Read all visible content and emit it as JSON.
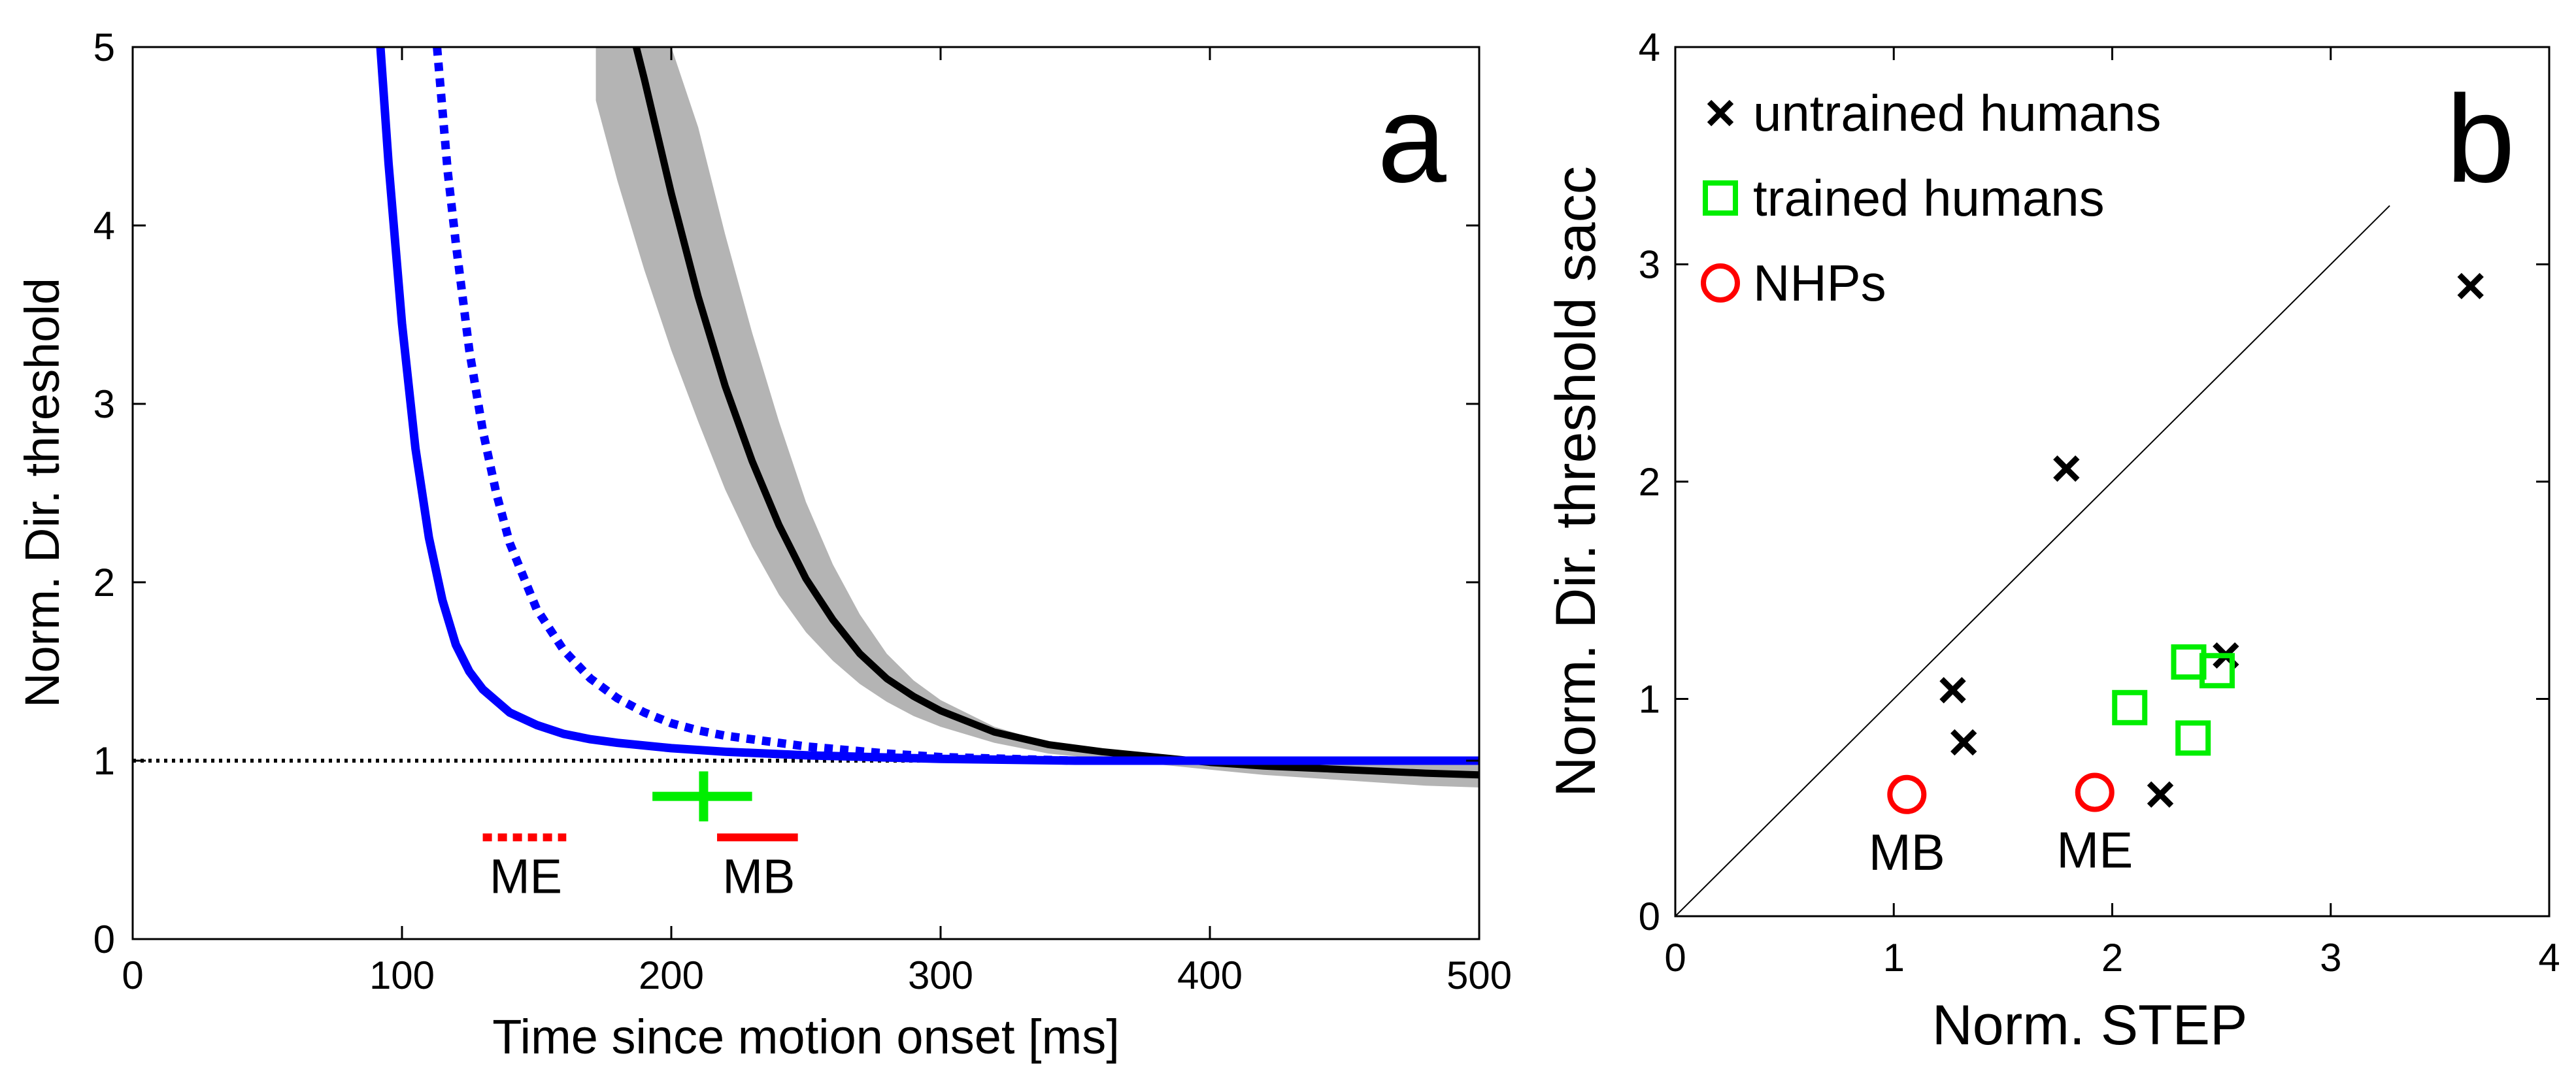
{
  "chart_data": [
    {
      "panel": "a",
      "type": "line",
      "panel_label": "a",
      "xlabel": "Time since motion onset [ms]",
      "ylabel": "Norm. Dir. threshold",
      "xlim": [
        0,
        500
      ],
      "ylim": [
        0,
        5
      ],
      "xticks": [
        "0",
        "100",
        "200",
        "300",
        "400",
        "500"
      ],
      "yticks": [
        "0",
        "1",
        "2",
        "3",
        "4",
        "5"
      ],
      "reference_line": {
        "y": 1,
        "style": "dotted",
        "color": "#000000"
      },
      "colors": {
        "solid_blue": "#0000ff",
        "dotted_blue": "#0000ff",
        "black": "#000000",
        "band": "#b4b4b4",
        "green": "#00ee00",
        "red": "#ff0000"
      },
      "series": [
        {
          "name": "solid blue",
          "style": "solid",
          "x": [
            92,
            95,
            100,
            105,
            110,
            115,
            120,
            125,
            130,
            140,
            150,
            160,
            170,
            180,
            200,
            220,
            250,
            300,
            350,
            400,
            450,
            500
          ],
          "y": [
            5.0,
            4.35,
            3.45,
            2.75,
            2.25,
            1.9,
            1.65,
            1.5,
            1.4,
            1.27,
            1.2,
            1.15,
            1.12,
            1.1,
            1.07,
            1.05,
            1.03,
            1.01,
            1.0,
            1.0,
            1.0,
            1.0
          ]
        },
        {
          "name": "dotted blue",
          "style": "dotted",
          "x": [
            113,
            117,
            120,
            125,
            130,
            135,
            140,
            150,
            160,
            170,
            180,
            190,
            200,
            210,
            220,
            250,
            280,
            300,
            350,
            400,
            450,
            500
          ],
          "y": [
            5.0,
            4.3,
            3.9,
            3.3,
            2.85,
            2.5,
            2.22,
            1.85,
            1.62,
            1.46,
            1.35,
            1.27,
            1.21,
            1.17,
            1.14,
            1.08,
            1.04,
            1.02,
            1.0,
            1.0,
            1.0,
            1.0
          ]
        },
        {
          "name": "black mean",
          "style": "solid",
          "x": [
            187,
            190,
            195,
            200,
            210,
            220,
            230,
            240,
            250,
            260,
            270,
            280,
            290,
            300,
            320,
            340,
            360,
            380,
            400,
            420,
            450,
            480,
            500
          ],
          "y": [
            5.0,
            4.82,
            4.5,
            4.18,
            3.6,
            3.1,
            2.68,
            2.32,
            2.02,
            1.79,
            1.6,
            1.46,
            1.36,
            1.28,
            1.16,
            1.09,
            1.05,
            1.02,
            0.99,
            0.97,
            0.95,
            0.93,
            0.92
          ]
        },
        {
          "name": "gray band",
          "style": "band",
          "x": [
            172,
            180,
            190,
            200,
            210,
            220,
            230,
            240,
            250,
            260,
            270,
            280,
            290,
            300,
            320,
            340,
            360,
            380,
            400,
            420,
            450,
            480,
            500
          ],
          "y_low": [
            4.7,
            4.25,
            3.75,
            3.3,
            2.9,
            2.52,
            2.2,
            1.93,
            1.72,
            1.56,
            1.43,
            1.33,
            1.25,
            1.19,
            1.1,
            1.04,
            1.01,
            0.98,
            0.95,
            0.92,
            0.89,
            0.86,
            0.85
          ],
          "y_high": [
            5.0,
            5.0,
            5.0,
            5.0,
            4.55,
            3.95,
            3.4,
            2.9,
            2.45,
            2.1,
            1.82,
            1.6,
            1.45,
            1.34,
            1.19,
            1.1,
            1.06,
            1.03,
            1.01,
            1.0,
            0.99,
            0.98,
            0.98
          ]
        }
      ],
      "markers": [
        {
          "name": "green cross",
          "x": 212,
          "y": 0.8,
          "x_err": [
            193,
            230
          ],
          "y_err": [
            0.66,
            0.94
          ]
        },
        {
          "name": "ME",
          "label": "ME",
          "style": "dotted",
          "x": [
            130,
            161
          ],
          "y": 0.57
        },
        {
          "name": "MB",
          "label": "MB",
          "style": "solid",
          "x": [
            217,
            247
          ],
          "y": 0.57
        }
      ]
    },
    {
      "panel": "b",
      "type": "scatter",
      "panel_label": "b",
      "xlabel": "Norm. STEP",
      "ylabel": "Norm. Dir. threshold sacc",
      "xlim": [
        0,
        4
      ],
      "ylim": [
        0,
        4
      ],
      "xticks": [
        "0",
        "1",
        "2",
        "3",
        "4"
      ],
      "yticks": [
        "0",
        "1",
        "2",
        "3",
        "4"
      ],
      "identity_line": {
        "x": [
          0,
          3.27
        ],
        "y": [
          0,
          3.27
        ]
      },
      "legend": {
        "location": "top-left",
        "entries": [
          {
            "label": "untrained humans",
            "marker": "x",
            "color": "#000000"
          },
          {
            "label": "trained humans",
            "marker": "square",
            "color": "#00ee00"
          },
          {
            "label": "NHPs",
            "marker": "circle",
            "color": "#ff0000"
          }
        ]
      },
      "series": [
        {
          "name": "untrained humans",
          "marker": "x",
          "color": "#000000",
          "x": [
            1.27,
            1.32,
            1.79,
            2.22,
            2.52,
            3.64
          ],
          "y": [
            1.04,
            0.8,
            2.06,
            0.56,
            1.2,
            2.9
          ]
        },
        {
          "name": "trained humans",
          "marker": "square",
          "color": "#00ee00",
          "x": [
            2.08,
            2.35,
            2.37,
            2.48
          ],
          "y": [
            0.96,
            1.17,
            0.82,
            1.13
          ]
        },
        {
          "name": "NHPs",
          "marker": "circle",
          "color": "#ff0000",
          "x": [
            1.06,
            1.92
          ],
          "y": [
            0.56,
            0.57
          ],
          "labels": [
            "MB",
            "ME"
          ]
        }
      ]
    }
  ]
}
